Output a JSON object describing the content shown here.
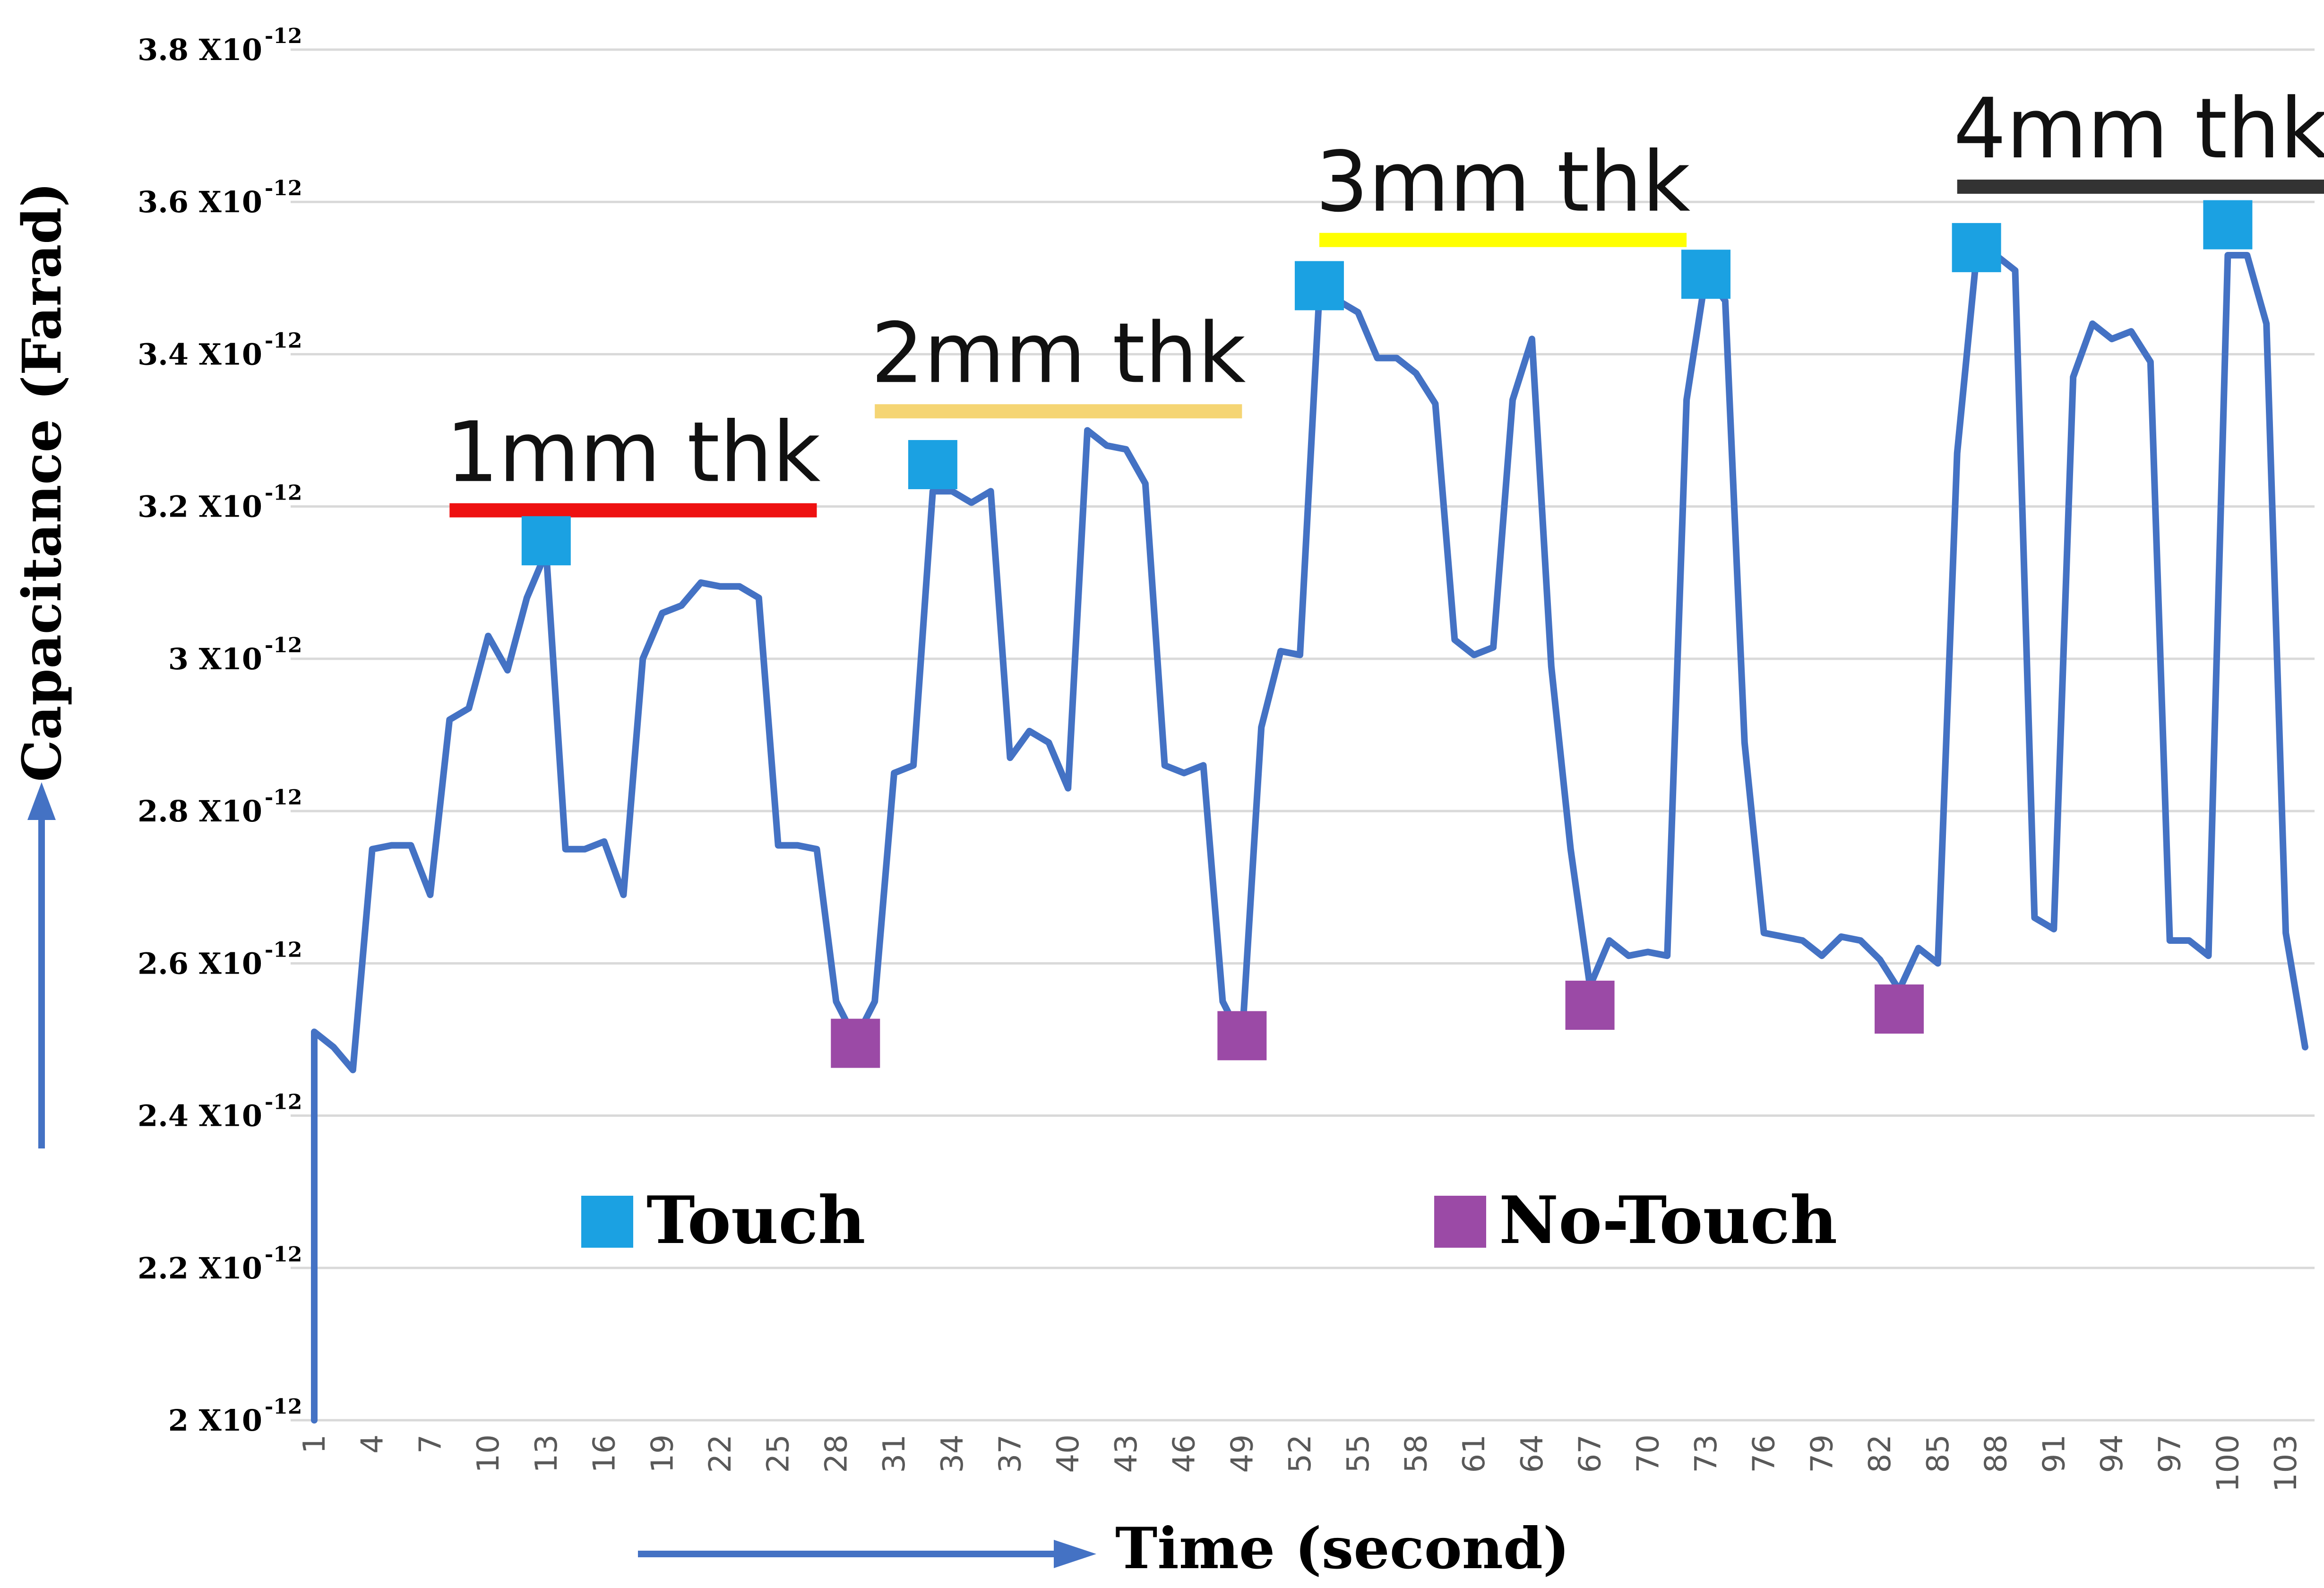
{
  "chart_data": {
    "type": "line",
    "title": "",
    "xlabel": "Time (second)",
    "ylabel": "Capacitance (Farad)",
    "x_range": [
      1,
      104
    ],
    "ylim": [
      2.0,
      3.8
    ],
    "y_unit_suffix": "-12",
    "y_ticks": [
      {
        "value": 2.0,
        "label": "2  X10"
      },
      {
        "value": 2.2,
        "label": "2.2  X10"
      },
      {
        "value": 2.4,
        "label": "2.4  X10"
      },
      {
        "value": 2.6,
        "label": "2.6  X10"
      },
      {
        "value": 2.8,
        "label": "2.8  X10"
      },
      {
        "value": 3.0,
        "label": "3  X10"
      },
      {
        "value": 3.2,
        "label": "3.2  X10"
      },
      {
        "value": 3.4,
        "label": "3.4  X10"
      },
      {
        "value": 3.6,
        "label": "3.6  X10"
      },
      {
        "value": 3.8,
        "label": "3.8  X10"
      }
    ],
    "x_ticks": [
      "1",
      "4",
      "7",
      "10",
      "13",
      "16",
      "19",
      "22",
      "25",
      "28",
      "31",
      "34",
      "37",
      "40",
      "43",
      "46",
      "49",
      "52",
      "55",
      "58",
      "61",
      "64",
      "67",
      "70",
      "73",
      "76",
      "79",
      "82",
      "85",
      "88",
      "91",
      "94",
      "97",
      "100",
      "103"
    ],
    "grid": true,
    "series": [
      {
        "name": "Capacitance",
        "color": "#4472c4",
        "points": [
          [
            1,
            2.0
          ],
          [
            1,
            2.51
          ],
          [
            2,
            2.49
          ],
          [
            3,
            2.46
          ],
          [
            4,
            2.75
          ],
          [
            5,
            2.755
          ],
          [
            6,
            2.755
          ],
          [
            7,
            2.69
          ],
          [
            8,
            2.92
          ],
          [
            9,
            2.935
          ],
          [
            10,
            3.03
          ],
          [
            11,
            2.985
          ],
          [
            12,
            3.08
          ],
          [
            13,
            3.14
          ],
          [
            14,
            2.75
          ],
          [
            15,
            2.75
          ],
          [
            16,
            2.76
          ],
          [
            17,
            2.69
          ],
          [
            18,
            3.0
          ],
          [
            19,
            3.06
          ],
          [
            20,
            3.07
          ],
          [
            21,
            3.1
          ],
          [
            22,
            3.095
          ],
          [
            23,
            3.095
          ],
          [
            24,
            3.08
          ],
          [
            25,
            2.755
          ],
          [
            26,
            2.755
          ],
          [
            27,
            2.75
          ],
          [
            28,
            2.55
          ],
          [
            29,
            2.5
          ],
          [
            30,
            2.55
          ],
          [
            31,
            2.85
          ],
          [
            32,
            2.86
          ],
          [
            33,
            3.22
          ],
          [
            34,
            3.22
          ],
          [
            35,
            3.205
          ],
          [
            36,
            3.22
          ],
          [
            37,
            2.87
          ],
          [
            38,
            2.905
          ],
          [
            39,
            2.89
          ],
          [
            40,
            2.83
          ],
          [
            41,
            3.3
          ],
          [
            42,
            3.28
          ],
          [
            43,
            3.275
          ],
          [
            44,
            3.23
          ],
          [
            45,
            2.86
          ],
          [
            46,
            2.85
          ],
          [
            47,
            2.86
          ],
          [
            48,
            2.55
          ],
          [
            49,
            2.5
          ],
          [
            50,
            2.91
          ],
          [
            51,
            3.01
          ],
          [
            52,
            3.005
          ],
          [
            53,
            3.48
          ],
          [
            54,
            3.47
          ],
          [
            55,
            3.455
          ],
          [
            56,
            3.395
          ],
          [
            57,
            3.395
          ],
          [
            58,
            3.375
          ],
          [
            59,
            3.335
          ],
          [
            60,
            3.025
          ],
          [
            61,
            3.005
          ],
          [
            62,
            3.015
          ],
          [
            63,
            3.34
          ],
          [
            64,
            3.42
          ],
          [
            65,
            2.99
          ],
          [
            66,
            2.75
          ],
          [
            67,
            2.57
          ],
          [
            68,
            2.63
          ],
          [
            69,
            2.61
          ],
          [
            70,
            2.615
          ],
          [
            71,
            2.61
          ],
          [
            72,
            3.34
          ],
          [
            73,
            3.505
          ],
          [
            74,
            3.47
          ],
          [
            75,
            2.89
          ],
          [
            76,
            2.64
          ],
          [
            77,
            2.635
          ],
          [
            78,
            2.63
          ],
          [
            79,
            2.61
          ],
          [
            80,
            2.635
          ],
          [
            81,
            2.63
          ],
          [
            82,
            2.605
          ],
          [
            83,
            2.565
          ],
          [
            84,
            2.62
          ],
          [
            85,
            2.6
          ],
          [
            86,
            3.27
          ],
          [
            87,
            3.53
          ],
          [
            88,
            3.53
          ],
          [
            89,
            3.51
          ],
          [
            90,
            2.66
          ],
          [
            91,
            2.645
          ],
          [
            92,
            3.37
          ],
          [
            93,
            3.44
          ],
          [
            94,
            3.42
          ],
          [
            95,
            3.43
          ],
          [
            96,
            3.39
          ],
          [
            97,
            2.63
          ],
          [
            98,
            2.63
          ],
          [
            99,
            2.61
          ],
          [
            100,
            3.53
          ],
          [
            101,
            3.53
          ],
          [
            102,
            3.44
          ],
          [
            103,
            2.64
          ],
          [
            104,
            2.49
          ]
        ]
      }
    ],
    "annotations": [
      {
        "text": "1mm thk",
        "x_start": 8,
        "x_end": 27,
        "y": 3.195,
        "color": "#ee1111"
      },
      {
        "text": "2mm thk",
        "x_start": 30,
        "x_end": 49,
        "y": 3.325,
        "color": "#f5d574"
      },
      {
        "text": "3mm thk",
        "x_start": 53,
        "x_end": 72,
        "y": 3.55,
        "color": "#ffff00"
      },
      {
        "text": "4mm thk",
        "x_start": 86,
        "x_end": 105,
        "y": 3.62,
        "color": "#333333"
      }
    ],
    "markers": {
      "touch": {
        "label": "Touch",
        "color": "#1ba1e2",
        "points": [
          [
            13,
            3.155
          ],
          [
            33,
            3.255
          ],
          [
            53,
            3.49
          ],
          [
            73,
            3.505
          ],
          [
            87,
            3.54
          ],
          [
            100,
            3.57
          ]
        ]
      },
      "no_touch": {
        "label": "No-Touch",
        "color": "#9b4aa6",
        "points": [
          [
            29,
            2.495
          ],
          [
            49,
            2.505
          ],
          [
            67,
            2.545
          ],
          [
            83,
            2.54
          ]
        ]
      }
    },
    "legend": [
      {
        "label": "Touch",
        "color": "#1ba1e2"
      },
      {
        "label": "No-Touch",
        "color": "#9b4aa6"
      }
    ]
  }
}
